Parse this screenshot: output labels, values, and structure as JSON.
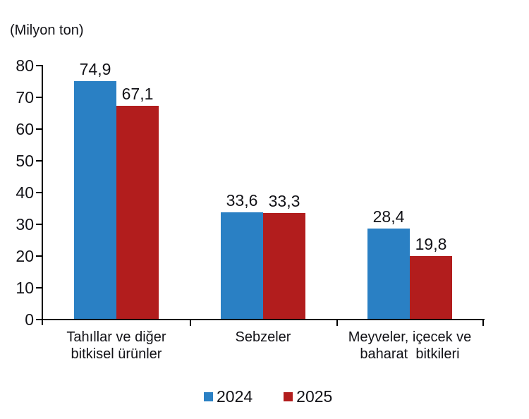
{
  "chart_data": {
    "type": "bar",
    "title": "",
    "unit_label": "(Milyon ton)",
    "categories": [
      {
        "lines": [
          "Tahıllar ve diğer",
          "bitkisel ürünler"
        ]
      },
      {
        "lines": [
          "Sebzeler"
        ]
      },
      {
        "lines": [
          "Meyveler, içecek ve",
          "baharat  bitkileri"
        ]
      }
    ],
    "series": [
      {
        "name": "2024",
        "color": "#2A80C4",
        "values": [
          74.9,
          33.6,
          28.4
        ],
        "labels": [
          "74,9",
          "33,6",
          "28,4"
        ]
      },
      {
        "name": "2025",
        "color": "#B21D1D",
        "values": [
          67.1,
          33.3,
          19.8
        ],
        "labels": [
          "67,1",
          "33,3",
          "19,8"
        ]
      }
    ],
    "y_axis": {
      "min": 0,
      "max": 80,
      "step": 10,
      "tick_labels": [
        "0",
        "10",
        "20",
        "30",
        "40",
        "50",
        "60",
        "70",
        "80"
      ]
    },
    "legend": {
      "position": "bottom",
      "entries": [
        "2024",
        "2025"
      ]
    },
    "grid": false,
    "decimal_separator": ",",
    "colors": {
      "axis": "#000000",
      "text": "#121217",
      "background": "#FFFFFF"
    }
  }
}
